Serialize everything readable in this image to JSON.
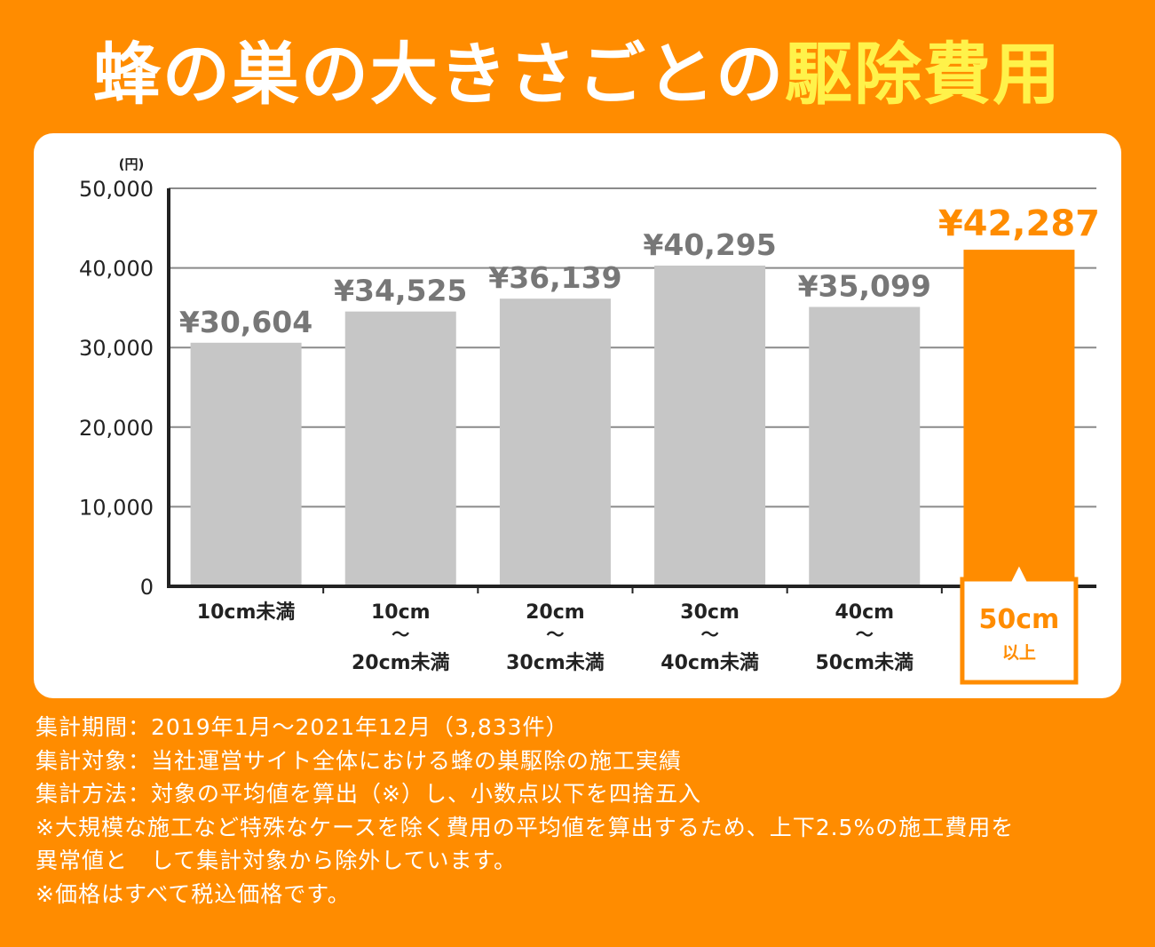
{
  "title": {
    "main": "蜂の巣の大きさごとの",
    "highlight": "駆除費用"
  },
  "colors": {
    "accent": "#ff8c00",
    "bar": "#c6c6c6",
    "value_label": "#777777",
    "highlight_title": "#fff24a"
  },
  "chart_data": {
    "type": "bar",
    "title": "蜂の巣の大きさごとの駆除費用",
    "ylabel": "(円)",
    "xlabel": "",
    "ylim": [
      0,
      50000
    ],
    "grid": true,
    "yticks": [
      "0",
      "10,000",
      "20,000",
      "30,000",
      "40,000",
      "50,000"
    ],
    "categories": [
      [
        "10cm未満"
      ],
      [
        "10cm",
        "〜",
        "20cm未満"
      ],
      [
        "20cm",
        "〜",
        "30cm未満"
      ],
      [
        "30cm",
        "〜",
        "40cm未満"
      ],
      [
        "40cm",
        "〜",
        "50cm未満"
      ],
      [
        "50cm",
        "以上"
      ]
    ],
    "values": [
      30604,
      34525,
      36139,
      40295,
      35099,
      42287
    ],
    "value_labels": [
      "¥30,604",
      "¥34,525",
      "¥36,139",
      "¥40,295",
      "¥35,099",
      "¥42,287"
    ],
    "highlight_index": 5
  },
  "notes": [
    "集計期間：2019年1月〜2021年12月（3,833件）",
    "集計対象：当社運営サイト全体における蜂の巣駆除の施工実績",
    "集計方法：対象の平均値を算出（※）し、小数点以下を四捨五入",
    "※大規模な施工など特殊なケースを除く費用の平均値を算出するため、上下2.5%の施工費用を",
    "異常値と　して集計対象から除外しています。",
    "※価格はすべて税込価格です。"
  ]
}
